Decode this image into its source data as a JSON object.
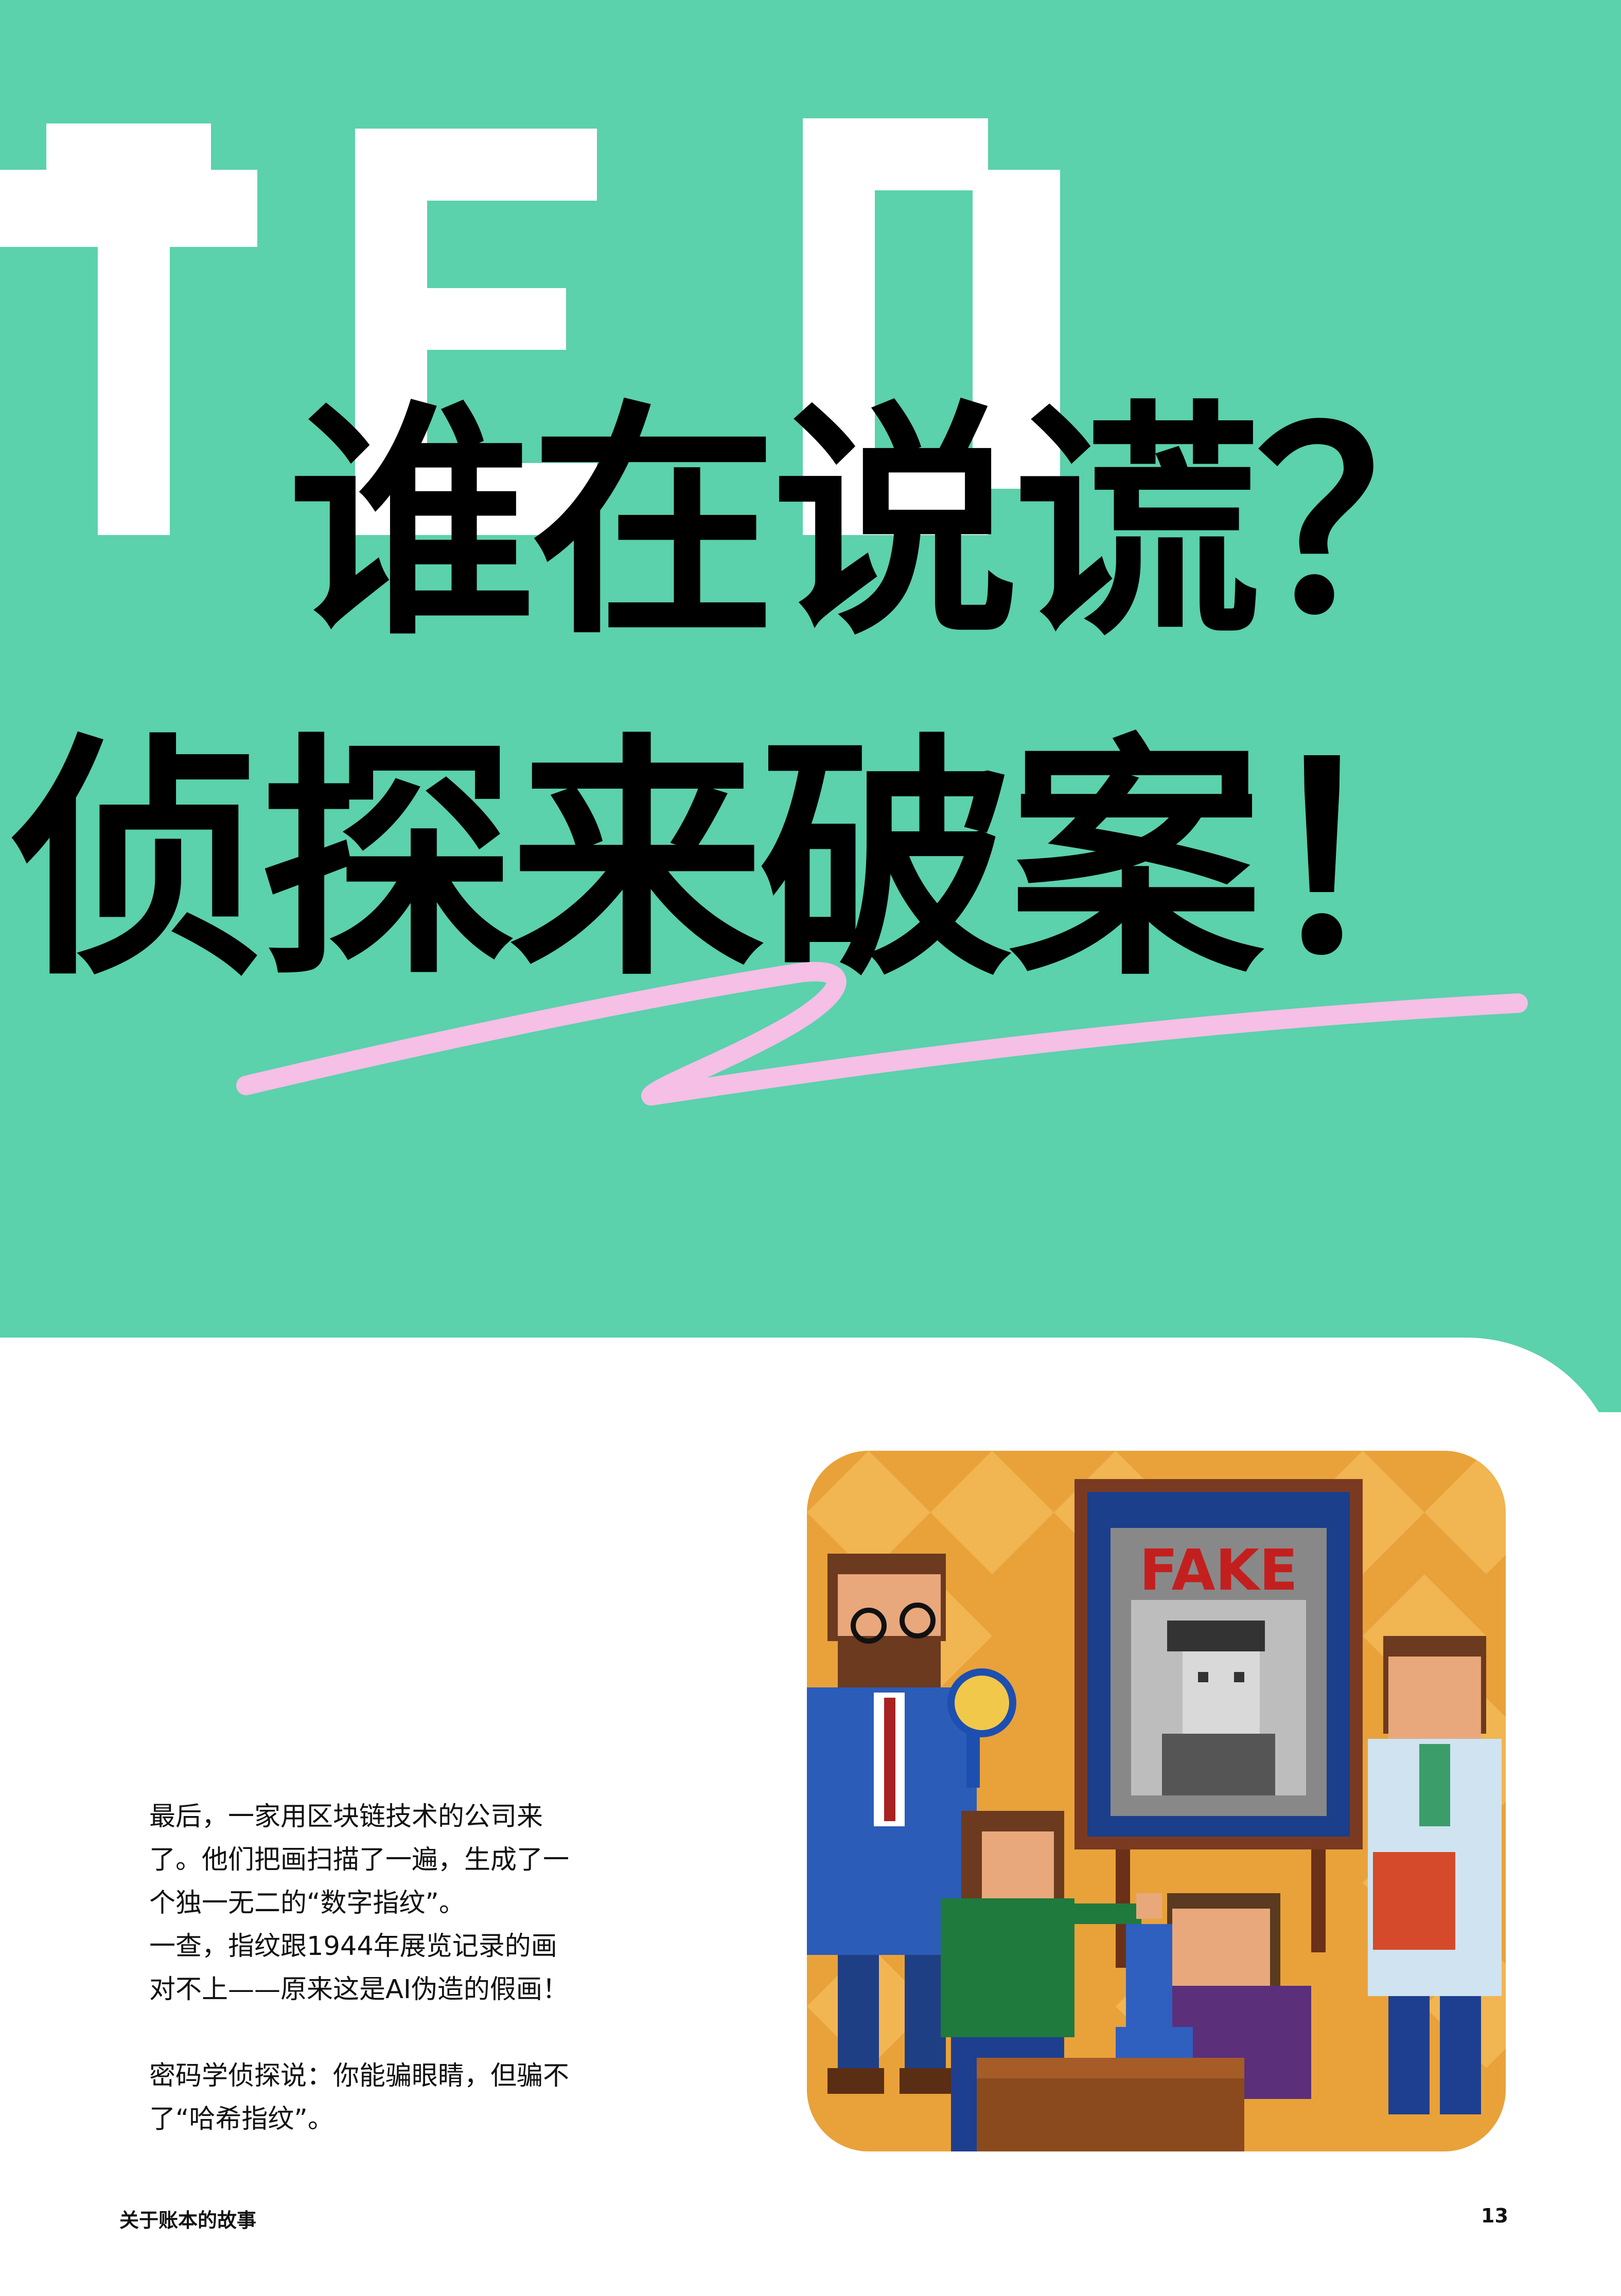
{
  "headline": {
    "line1": "谁在说谎？",
    "line2": "侦探来破案！"
  },
  "decor": {
    "ted_mark": "TED",
    "green": "#5bd1ac",
    "pink": "#f5bfe6"
  },
  "illustration": {
    "sign_text": "FAKE"
  },
  "story": {
    "p1": "最后，一家用区块链技术的公司来",
    "p2": "了。他们把画扫描了一遍，生成了一",
    "p3": "个独一无二的“数字指纹”。",
    "p4": "一查，指纹跟1944年展览记录的画",
    "p5": "对不上——原来这是AI伪造的假画！",
    "p6": "密码学侦探说：你能骗眼睛，但骗不",
    "p7": "了“哈希指纹”。"
  },
  "footer": {
    "title": "关于账本的故事",
    "page_number": "13"
  }
}
